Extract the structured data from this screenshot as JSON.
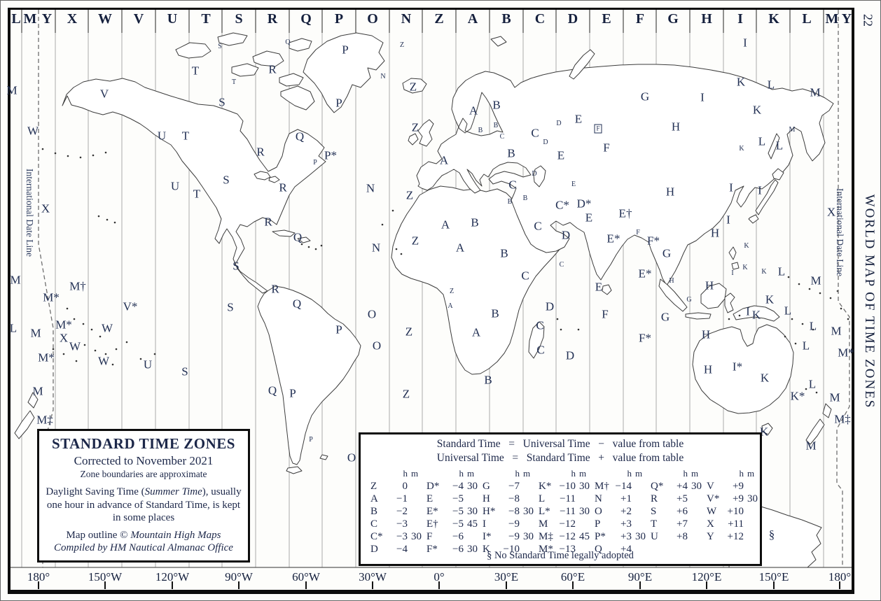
{
  "page": {
    "number": "22",
    "side_title": "WORLD MAP OF TIME ZONES"
  },
  "date_line": {
    "left_label": "International Date Line",
    "right_label": "International Date Line"
  },
  "top_zone_letters": [
    "L",
    "M",
    "Y",
    "X",
    "W",
    "V",
    "U",
    "T",
    "S",
    "R",
    "Q",
    "P",
    "O",
    "N",
    "Z",
    "A",
    "B",
    "C",
    "D",
    "E",
    "F",
    "G",
    "H",
    "I",
    "K",
    "L",
    "M",
    "Y"
  ],
  "bottom_longitude_labels": [
    "180°",
    "150°W",
    "120°W",
    "90°W",
    "60°W",
    "30°W",
    "0°",
    "30°E",
    "60°E",
    "90°E",
    "120°E",
    "150°E",
    "180°"
  ],
  "legend_box": {
    "title": "STANDARD TIME ZONES",
    "corrected": "Corrected to November 2021",
    "boundaries_note": "Zone boundaries are approximate",
    "dst_part1": "Daylight Saving Time (",
    "dst_italic": "Summer Time",
    "dst_part2": "), usually one hour in advance of Standard Time, is kept in some places",
    "outline_part1": "Map outline © ",
    "outline_italic": "Mountain High Maps",
    "compiled": "Compiled by HM Nautical Almanac Office"
  },
  "conversion_table": {
    "equation1": "Standard Time   =   Universal Time   −   value from table",
    "equation2": "Universal Time   =   Standard Time   +   value from table",
    "unit_h": "h",
    "unit_m": "m",
    "columns": [
      [
        [
          "Z",
          "0",
          ""
        ],
        [
          "A",
          "−1",
          ""
        ],
        [
          "B",
          "−2",
          ""
        ],
        [
          "C",
          "−3",
          ""
        ],
        [
          "C*",
          "−3",
          "30"
        ],
        [
          "D",
          "−4",
          ""
        ]
      ],
      [
        [
          "D*",
          "−4",
          "30"
        ],
        [
          "E",
          "−5",
          ""
        ],
        [
          "E*",
          "−5",
          "30"
        ],
        [
          "E†",
          "−5",
          "45"
        ],
        [
          "F",
          "−6",
          ""
        ],
        [
          "F*",
          "−6",
          "30"
        ]
      ],
      [
        [
          "G",
          "−7",
          ""
        ],
        [
          "H",
          "−8",
          ""
        ],
        [
          "H*",
          "−8",
          "30"
        ],
        [
          "I",
          "−9",
          ""
        ],
        [
          "I*",
          "−9",
          "30"
        ],
        [
          "K",
          "−10",
          ""
        ]
      ],
      [
        [
          "K*",
          "−10",
          "30"
        ],
        [
          "L",
          "−11",
          ""
        ],
        [
          "L*",
          "−11",
          "30"
        ],
        [
          "M",
          "−12",
          ""
        ],
        [
          "M‡",
          "−12",
          "45"
        ],
        [
          "M*",
          "−13",
          ""
        ]
      ],
      [
        [
          "M†",
          "−14",
          ""
        ],
        [
          "N",
          "+1",
          ""
        ],
        [
          "O",
          "+2",
          ""
        ],
        [
          "P",
          "+3",
          ""
        ],
        [
          "P*",
          "+3",
          "30"
        ],
        [
          "Q",
          "+4",
          ""
        ]
      ],
      [
        [
          "Q*",
          "+4",
          "30"
        ],
        [
          "R",
          "+5",
          ""
        ],
        [
          "S",
          "+6",
          ""
        ],
        [
          "T",
          "+7",
          ""
        ],
        [
          "U",
          "+8",
          ""
        ]
      ],
      [
        [
          "V",
          "+9",
          ""
        ],
        [
          "V*",
          "+9",
          "30"
        ],
        [
          "W",
          "+10",
          ""
        ],
        [
          "X",
          "+11",
          ""
        ],
        [
          "Y",
          "+12",
          ""
        ]
      ]
    ],
    "footnote": "§ No Standard Time legally adopted"
  },
  "map_zone_letters": [
    [
      "M",
      16,
      128
    ],
    [
      "W",
      46,
      186
    ],
    [
      "X",
      64,
      297
    ],
    [
      "M",
      21,
      399
    ],
    [
      "M†",
      110,
      408
    ],
    [
      "M*",
      72,
      424
    ],
    [
      "V*",
      185,
      437
    ],
    [
      "L",
      18,
      468
    ],
    [
      "M",
      50,
      475
    ],
    [
      "M*",
      90,
      463
    ],
    [
      "X",
      90,
      482
    ],
    [
      "W",
      152,
      468
    ],
    [
      "W",
      106,
      494
    ],
    [
      "M*",
      65,
      510
    ],
    [
      "W",
      147,
      515
    ],
    [
      "U",
      210,
      520
    ],
    [
      "S",
      263,
      530
    ],
    [
      "M",
      53,
      558
    ],
    [
      "M‡",
      63,
      599
    ],
    [
      "V",
      148,
      133
    ],
    [
      "S",
      313,
      66,
      "s"
    ],
    [
      "T",
      278,
      100
    ],
    [
      "T",
      333,
      117,
      "s"
    ],
    [
      "R",
      388,
      98
    ],
    [
      "S",
      316,
      145
    ],
    [
      "U",
      230,
      193
    ],
    [
      "T",
      264,
      193
    ],
    [
      "R",
      371,
      216
    ],
    [
      "Q",
      427,
      194
    ],
    [
      "P*",
      471,
      221
    ],
    [
      "P",
      449,
      232,
      "s"
    ],
    [
      "S",
      322,
      256
    ],
    [
      "U",
      249,
      265
    ],
    [
      "T",
      280,
      276
    ],
    [
      "R",
      403,
      267
    ],
    [
      "R",
      382,
      316
    ],
    [
      "Q",
      424,
      338
    ],
    [
      "S",
      336,
      379
    ],
    [
      "S",
      328,
      438
    ],
    [
      "Q",
      410,
      60,
      "s"
    ],
    [
      "P",
      492,
      70
    ],
    [
      "Z",
      573,
      64,
      "s"
    ],
    [
      "N",
      546,
      109,
      "s"
    ],
    [
      "Z",
      589,
      123
    ],
    [
      "P",
      483,
      146
    ],
    [
      "Z",
      592,
      181
    ],
    [
      "N",
      528,
      268
    ],
    [
      "N",
      536,
      353
    ],
    [
      "Z",
      584,
      278
    ],
    [
      "Z",
      592,
      343
    ],
    [
      "O",
      530,
      448
    ],
    [
      "Z",
      583,
      473
    ],
    [
      "O",
      537,
      493
    ],
    [
      "Z",
      579,
      562
    ],
    [
      "O",
      501,
      653
    ],
    [
      "R",
      392,
      412
    ],
    [
      "Q",
      423,
      433
    ],
    [
      "P",
      483,
      470
    ],
    [
      "Q",
      388,
      557
    ],
    [
      "P",
      417,
      561
    ],
    [
      "P",
      443,
      628,
      "s"
    ],
    [
      "A",
      675,
      157
    ],
    [
      "B",
      708,
      149
    ],
    [
      "B",
      685,
      186,
      "s"
    ],
    [
      "B",
      707,
      179,
      "s"
    ],
    [
      "C",
      716,
      195,
      "s"
    ],
    [
      "C",
      763,
      189
    ],
    [
      "D",
      797,
      176,
      "s"
    ],
    [
      "E",
      825,
      169
    ],
    [
      "F",
      853,
      183,
      "sb"
    ],
    [
      "D",
      778,
      203,
      "s"
    ],
    [
      "E",
      800,
      221
    ],
    [
      "F",
      865,
      210
    ],
    [
      "A",
      633,
      228
    ],
    [
      "B",
      729,
      218
    ],
    [
      "D",
      762,
      248,
      "s"
    ],
    [
      "C",
      731,
      263
    ],
    [
      "E",
      818,
      263,
      "s"
    ],
    [
      "B",
      727,
      288,
      "s"
    ],
    [
      "B",
      749,
      283,
      "s"
    ],
    [
      "C*",
      802,
      292
    ],
    [
      "D*",
      833,
      290
    ],
    [
      "E",
      840,
      310
    ],
    [
      "E†",
      892,
      304
    ],
    [
      "C",
      767,
      322
    ],
    [
      "D",
      807,
      335
    ],
    [
      "E*",
      875,
      340
    ],
    [
      "F",
      910,
      332,
      "s"
    ],
    [
      "F*",
      932,
      343
    ],
    [
      "G",
      951,
      361
    ],
    [
      "E",
      854,
      409
    ],
    [
      "F",
      863,
      448
    ],
    [
      "A",
      635,
      320
    ],
    [
      "B",
      677,
      317
    ],
    [
      "A",
      656,
      353
    ],
    [
      "B",
      719,
      361
    ],
    [
      "C",
      749,
      393
    ],
    [
      "C",
      801,
      378,
      "s"
    ],
    [
      "D",
      784,
      437
    ],
    [
      "Z",
      644,
      416,
      "s"
    ],
    [
      "A",
      642,
      437,
      "s"
    ],
    [
      "B",
      706,
      447
    ],
    [
      "A",
      679,
      474
    ],
    [
      "C",
      770,
      464
    ],
    [
      "C",
      771,
      499
    ],
    [
      "D",
      813,
      507
    ],
    [
      "B",
      696,
      542
    ],
    [
      "G",
      920,
      137
    ],
    [
      "I",
      1002,
      138
    ],
    [
      "I",
      1063,
      60
    ],
    [
      "K",
      1057,
      116
    ],
    [
      "L",
      1100,
      120
    ],
    [
      "M",
      1163,
      131
    ],
    [
      "H",
      964,
      180
    ],
    [
      "K",
      1080,
      156
    ],
    [
      "M",
      1130,
      185,
      "s"
    ],
    [
      "L",
      1087,
      201
    ],
    [
      "L",
      1112,
      207
    ],
    [
      "K",
      1058,
      212,
      "s"
    ],
    [
      "H",
      956,
      273
    ],
    [
      "I",
      1043,
      267
    ],
    [
      "I",
      1084,
      271
    ],
    [
      "X",
      1186,
      302
    ],
    [
      "I",
      1039,
      313
    ],
    [
      "H",
      1020,
      332
    ],
    [
      "K",
      1065,
      351,
      "s"
    ],
    [
      "E*",
      920,
      390
    ],
    [
      "H",
      958,
      401,
      "s"
    ],
    [
      "H",
      1012,
      407
    ],
    [
      "G",
      983,
      428,
      "s"
    ],
    [
      "G",
      949,
      452
    ],
    [
      "H",
      1007,
      477
    ],
    [
      "F*",
      920,
      482
    ],
    [
      "I",
      1045,
      390,
      "s"
    ],
    [
      "K",
      1063,
      382,
      "s"
    ],
    [
      "K",
      1090,
      388,
      "s"
    ],
    [
      "L",
      1115,
      387
    ],
    [
      "M",
      1164,
      400
    ],
    [
      "I",
      1067,
      444
    ],
    [
      "K",
      1079,
      449
    ],
    [
      "K",
      1098,
      427
    ],
    [
      "L",
      1124,
      443
    ],
    [
      "M",
      1193,
      472
    ],
    [
      "L",
      1160,
      465
    ],
    [
      "L",
      1150,
      493
    ],
    [
      "M*",
      1207,
      503
    ],
    [
      "H",
      1010,
      527
    ],
    [
      "I*",
      1052,
      523
    ],
    [
      "K",
      1091,
      539
    ],
    [
      "L",
      1159,
      548
    ],
    [
      "K*",
      1138,
      565
    ],
    [
      "M",
      1191,
      567
    ],
    [
      "M‡",
      1202,
      598
    ],
    [
      "K",
      1090,
      616
    ],
    [
      "M",
      1157,
      636
    ],
    [
      "§",
      1101,
      763
    ]
  ]
}
